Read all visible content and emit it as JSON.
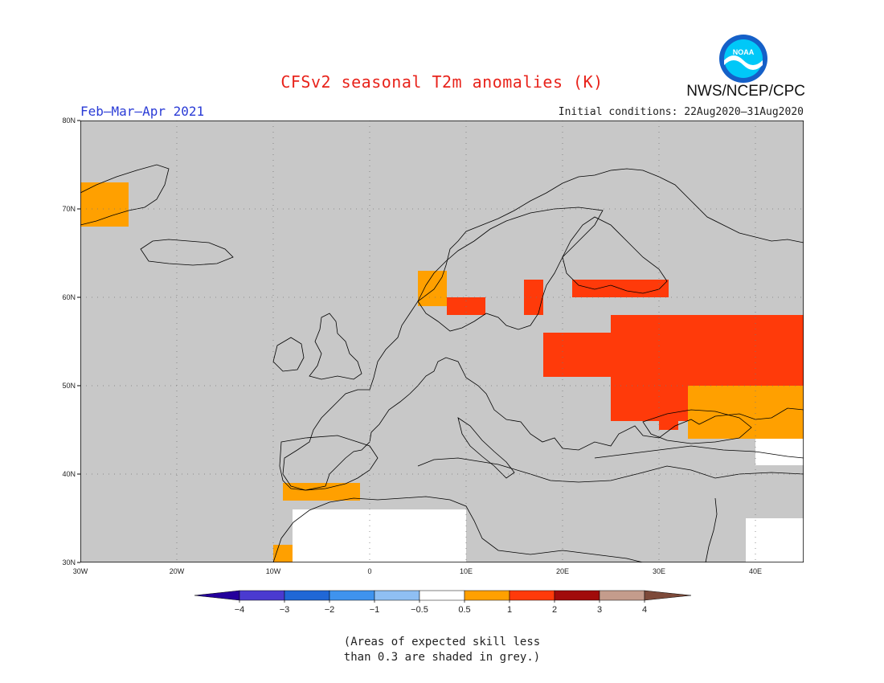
{
  "header": {
    "title": "CFSv2 seasonal T2m anomalies (K)",
    "agency": "NWS/NCEP/CPC",
    "period": "Feb–Mar–Apr 2021",
    "initial_conditions": "Initial conditions: 22Aug2020–31Aug2020",
    "logo_text": "NOAA"
  },
  "map": {
    "lon_range": [
      -30,
      45
    ],
    "lat_range": [
      30,
      80
    ],
    "lat_ticks": [
      "30N",
      "40N",
      "50N",
      "60N",
      "70N",
      "80N"
    ],
    "lon_ticks": [
      "30W",
      "20W",
      "10W",
      "0",
      "10E",
      "20E",
      "30E",
      "40E"
    ],
    "colors": {
      "grey": "#c8c8c8",
      "land_edge": "#000000",
      "white": "#ffffff"
    },
    "anomaly_regions": [
      {
        "bin": "1-2",
        "color": "#ff3a0a",
        "name": "western-russia",
        "lon": [
          25,
          45
        ],
        "lat": [
          46,
          58
        ]
      },
      {
        "bin": "0.5-1",
        "color": "#ffa000",
        "name": "ukraine-black-sea",
        "lon": [
          33,
          45
        ],
        "lat": [
          44,
          50
        ]
      },
      {
        "bin": "1-2",
        "color": "#ff3a0a",
        "name": "baltic-east",
        "lon": [
          18,
          26
        ],
        "lat": [
          51,
          56
        ]
      },
      {
        "bin": "1-2",
        "color": "#ff3a0a",
        "name": "finland-south",
        "lon": [
          21,
          31
        ],
        "lat": [
          60,
          62
        ]
      },
      {
        "bin": "1-2",
        "color": "#ff3a0a",
        "name": "sweden-east",
        "lon": [
          16,
          18
        ],
        "lat": [
          58,
          62
        ]
      },
      {
        "bin": "1-2",
        "color": "#ff3a0a",
        "name": "norway-south",
        "lon": [
          8,
          12
        ],
        "lat": [
          58,
          60
        ]
      },
      {
        "bin": "0.5-1",
        "color": "#ffa000",
        "name": "norway-west",
        "lon": [
          5,
          8
        ],
        "lat": [
          59,
          63
        ]
      },
      {
        "bin": "0.5-1",
        "color": "#ffa000",
        "name": "iberia-south",
        "lon": [
          -9,
          -1
        ],
        "lat": [
          37,
          39
        ]
      },
      {
        "bin": "0.5-1",
        "color": "#ffa000",
        "name": "morocco",
        "lon": [
          -10,
          -8
        ],
        "lat": [
          30,
          32
        ]
      },
      {
        "bin": "0.5-1",
        "color": "#ffa000",
        "name": "greenland-east",
        "lon": [
          -30,
          -25
        ],
        "lat": [
          68,
          73
        ]
      },
      {
        "bin": "1-2",
        "color": "#ff3a0a",
        "name": "crimea",
        "lon": [
          30,
          32
        ],
        "lat": [
          45,
          47
        ]
      }
    ],
    "white_regions": [
      {
        "name": "north-africa",
        "lon": [
          -8,
          10
        ],
        "lat": [
          30,
          36
        ]
      },
      {
        "name": "middle-east",
        "lon": [
          39,
          45
        ],
        "lat": [
          30,
          35
        ]
      },
      {
        "name": "caspian-south",
        "lon": [
          40,
          45
        ],
        "lat": [
          41,
          44
        ]
      }
    ]
  },
  "legend": {
    "bins": [
      {
        "color": "#24009c"
      },
      {
        "color": "#4a3ad0"
      },
      {
        "color": "#2067d6"
      },
      {
        "color": "#3f93ee"
      },
      {
        "color": "#8fbff3"
      },
      {
        "color": "#ffffff"
      },
      {
        "color": "#ffa000"
      },
      {
        "color": "#ff3a0a"
      },
      {
        "color": "#a10b0b"
      },
      {
        "color": "#c49c8c"
      },
      {
        "color": "#7d4a3a"
      }
    ],
    "labels": [
      "−4",
      "−3",
      "−2",
      "−1",
      "−0.5",
      "0.5",
      "1",
      "2",
      "3",
      "4"
    ]
  },
  "note": {
    "line1": "(Areas of expected skill less",
    "line2": "than 0.3 are shaded in grey.)"
  }
}
